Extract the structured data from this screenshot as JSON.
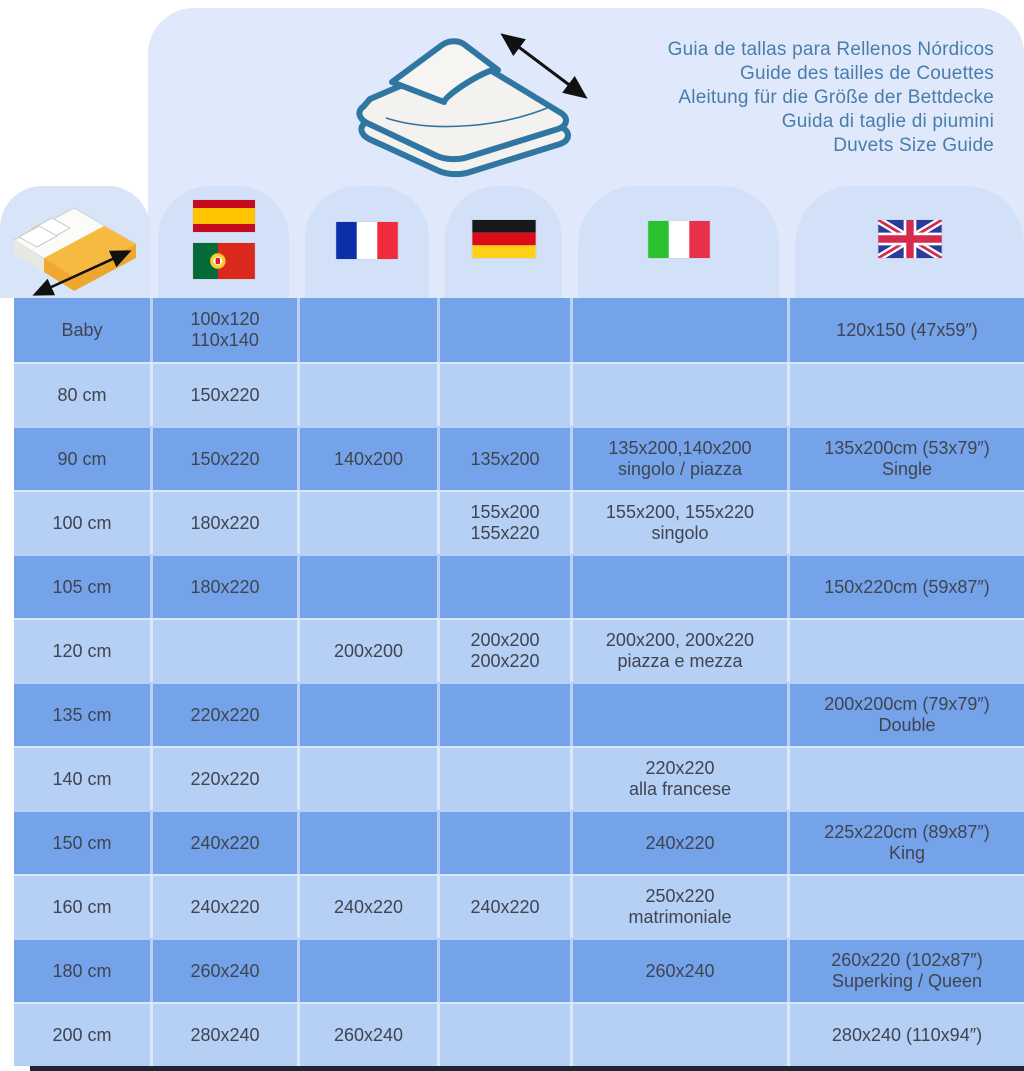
{
  "page": {
    "background": "#ffffff",
    "bottom_bar_color": "#1f2535"
  },
  "header": {
    "title_lines": [
      "Guia de tallas para Rellenos Nórdicos",
      "Guide des tailles de Couettes",
      "Aleitung für die Größe der Bettdecke",
      "Guida di taglie di piumini",
      "Duvets Size Guide"
    ],
    "title_color": "#4a7da9",
    "icons": [
      "folded-duvet-icon",
      "size-arrow-icon"
    ]
  },
  "legend": {
    "row_header_icon": "bed-size-icon",
    "columns": [
      {
        "name": "Spain / Portugal",
        "flags": [
          "spain-flag",
          "portugal-flag"
        ]
      },
      {
        "name": "France",
        "flags": [
          "france-flag"
        ]
      },
      {
        "name": "Germany",
        "flags": [
          "germany-flag"
        ]
      },
      {
        "name": "Italy",
        "flags": [
          "italy-flag"
        ]
      },
      {
        "name": "United Kingdom",
        "flags": [
          "uk-flag"
        ]
      }
    ]
  },
  "colors": {
    "panel": "#dfe9fb",
    "arch": "#d3e1f8",
    "row_dark": "#75a3ea",
    "row_light": "#b6cff5",
    "cell_text": "#3f4451"
  },
  "chart_data": {
    "type": "table",
    "title": "Duvets Size Guide",
    "columns": [
      "Bed width",
      "Spain / Portugal",
      "France",
      "Germany",
      "Italy",
      "United Kingdom"
    ],
    "rows": [
      {
        "label": "Baby",
        "cells": [
          [
            "100x120",
            "110x140"
          ],
          [],
          [],
          [],
          [
            "120x150 (47x59″)"
          ]
        ]
      },
      {
        "label": "80 cm",
        "cells": [
          [
            "150x220"
          ],
          [],
          [],
          [],
          []
        ]
      },
      {
        "label": "90 cm",
        "cells": [
          [
            "150x220"
          ],
          [
            "140x200"
          ],
          [
            "135x200"
          ],
          [
            "135x200,140x200",
            "singolo / piazza"
          ],
          [
            "135x200cm (53x79″)",
            "Single"
          ]
        ]
      },
      {
        "label": "100 cm",
        "cells": [
          [
            "180x220"
          ],
          [],
          [
            "155x200",
            "155x220"
          ],
          [
            "155x200, 155x220",
            "singolo"
          ],
          []
        ]
      },
      {
        "label": "105 cm",
        "cells": [
          [
            "180x220"
          ],
          [],
          [],
          [],
          [
            "150x220cm (59x87″)"
          ]
        ]
      },
      {
        "label": "120 cm",
        "cells": [
          [],
          [
            "200x200"
          ],
          [
            "200x200",
            "200x220"
          ],
          [
            "200x200, 200x220",
            "piazza e mezza"
          ],
          []
        ]
      },
      {
        "label": "135 cm",
        "cells": [
          [
            "220x220"
          ],
          [],
          [],
          [],
          [
            "200x200cm (79x79″)",
            "Double"
          ]
        ]
      },
      {
        "label": "140 cm",
        "cells": [
          [
            "220x220"
          ],
          [],
          [],
          [
            "220x220",
            "alla francese"
          ],
          []
        ]
      },
      {
        "label": "150 cm",
        "cells": [
          [
            "240x220"
          ],
          [],
          [],
          [
            "240x220"
          ],
          [
            "225x220cm (89x87″)",
            "King"
          ]
        ]
      },
      {
        "label": "160 cm",
        "cells": [
          [
            "240x220"
          ],
          [
            "240x220"
          ],
          [
            "240x220"
          ],
          [
            "250x220",
            "matrimoniale"
          ],
          []
        ]
      },
      {
        "label": "180 cm",
        "cells": [
          [
            "260x240"
          ],
          [],
          [],
          [
            "260x240"
          ],
          [
            "260x220 (102x87″)",
            "Superking / Queen"
          ]
        ]
      },
      {
        "label": "200 cm",
        "cells": [
          [
            "280x240"
          ],
          [
            "260x240"
          ],
          [],
          [],
          [
            "280x240 (110x94″)"
          ]
        ]
      }
    ]
  }
}
